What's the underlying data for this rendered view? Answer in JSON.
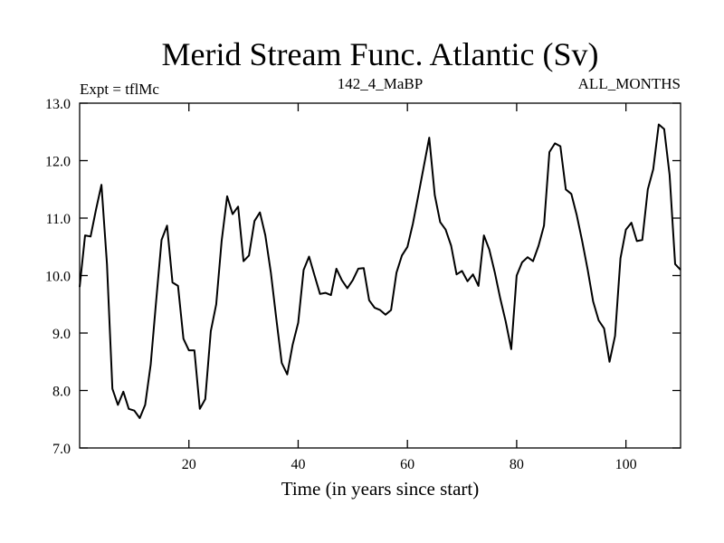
{
  "chart_data": {
    "type": "line",
    "title": "Merid Stream Func. Atlantic (Sv)",
    "subtitle_left": "Expt = tflMc",
    "subtitle_center": "142_4_MaBP",
    "subtitle_right": "ALL_MONTHS",
    "xlabel": "Time (in years since start)",
    "ylabel": "",
    "xlim": [
      0,
      110
    ],
    "ylim": [
      7.0,
      13.0
    ],
    "x_ticks": [
      20,
      40,
      60,
      80,
      100
    ],
    "y_ticks": [
      7.0,
      8.0,
      9.0,
      10.0,
      11.0,
      12.0,
      13.0
    ],
    "y_tick_labels": [
      "7.0",
      "8.0",
      "9.0",
      "10.0",
      "11.0",
      "12.0",
      "13.0"
    ],
    "x_tick_labels": [
      "20",
      "40",
      "60",
      "80",
      "100"
    ],
    "grid": false,
    "series": [
      {
        "name": "Merid Stream Func. Atlantic",
        "color": "#000000",
        "x": [
          0,
          1,
          2,
          3,
          4,
          5,
          6,
          7,
          8,
          9,
          10,
          11,
          12,
          13,
          14,
          15,
          16,
          17,
          18,
          19,
          20,
          21,
          22,
          23,
          24,
          25,
          26,
          27,
          28,
          29,
          30,
          31,
          32,
          33,
          34,
          35,
          36,
          37,
          38,
          39,
          40,
          41,
          42,
          43,
          44,
          45,
          46,
          47,
          48,
          49,
          50,
          51,
          52,
          53,
          54,
          55,
          56,
          57,
          58,
          59,
          60,
          61,
          62,
          63,
          64,
          65,
          66,
          67,
          68,
          69,
          70,
          71,
          72,
          73,
          74,
          75,
          76,
          77,
          78,
          79,
          80,
          81,
          82,
          83,
          84,
          85,
          86,
          87,
          88,
          89,
          90,
          91,
          92,
          93,
          94,
          95,
          96,
          97,
          98,
          99,
          100,
          101,
          102,
          103,
          104,
          105,
          106,
          107,
          108,
          109,
          110
        ],
        "values": [
          9.8,
          10.7,
          10.68,
          11.15,
          11.58,
          10.2,
          8.03,
          7.75,
          7.98,
          7.68,
          7.65,
          7.52,
          7.75,
          8.45,
          9.55,
          10.62,
          10.87,
          9.88,
          9.82,
          8.9,
          8.7,
          8.7,
          7.68,
          7.85,
          9.03,
          9.5,
          10.6,
          11.38,
          11.07,
          11.2,
          10.25,
          10.35,
          10.95,
          11.1,
          10.7,
          10.05,
          9.25,
          8.48,
          8.28,
          8.8,
          9.18,
          10.1,
          10.33,
          10.0,
          9.68,
          9.7,
          9.66,
          10.12,
          9.92,
          9.78,
          9.92,
          10.12,
          10.13,
          9.57,
          9.44,
          9.4,
          9.32,
          9.4,
          10.05,
          10.35,
          10.5,
          10.9,
          11.4,
          11.9,
          12.4,
          11.4,
          10.93,
          10.8,
          10.52,
          10.02,
          10.08,
          9.9,
          10.02,
          9.82,
          10.7,
          10.45,
          10.05,
          9.6,
          9.2,
          8.72,
          10.0,
          10.23,
          10.32,
          10.25,
          10.52,
          10.87,
          12.15,
          12.3,
          12.25,
          11.5,
          11.42,
          11.05,
          10.6,
          10.1,
          9.55,
          9.22,
          9.08,
          8.5,
          8.95,
          10.3,
          10.8,
          10.92,
          10.6,
          10.62,
          11.5,
          11.85,
          12.63,
          12.55,
          11.75,
          10.2,
          10.1
        ]
      }
    ]
  }
}
